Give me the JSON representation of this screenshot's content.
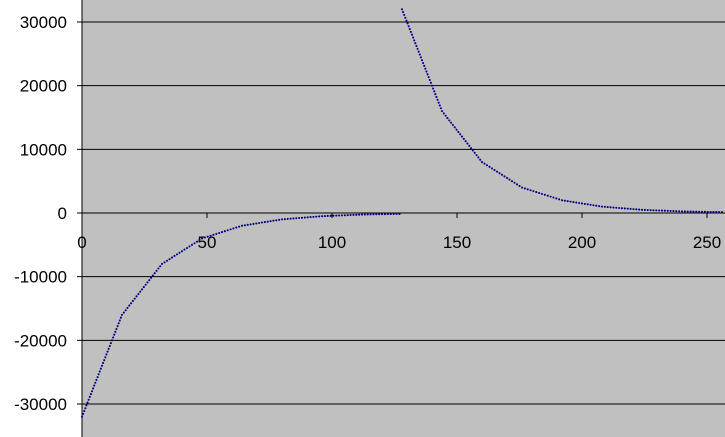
{
  "chart_data": {
    "type": "scatter",
    "title": "",
    "xlabel": "",
    "ylabel": "",
    "xlim": [
      0,
      257
    ],
    "ylim": [
      -35000,
      34000
    ],
    "grid": true,
    "legend": "none",
    "colors": {
      "plot_background": "#c0c0c0",
      "page_background": "#ffffff",
      "gridline": "#000000",
      "series": "#000080"
    },
    "x_ticks": [
      {
        "value": 0,
        "label": "0"
      },
      {
        "value": 50,
        "label": "50"
      },
      {
        "value": 100,
        "label": "100"
      },
      {
        "value": 150,
        "label": "150"
      },
      {
        "value": 200,
        "label": "200"
      },
      {
        "value": 250,
        "label": "250"
      }
    ],
    "y_ticks": [
      {
        "value": 30000,
        "label": "30000"
      },
      {
        "value": 20000,
        "label": "20000"
      },
      {
        "value": 10000,
        "label": "10000"
      },
      {
        "value": 0,
        "label": "0"
      },
      {
        "value": -10000,
        "label": "-10000"
      },
      {
        "value": -20000,
        "label": "-20000"
      },
      {
        "value": -30000,
        "label": "-30000"
      }
    ],
    "series": [
      {
        "x": [
          0,
          8,
          16,
          24,
          32,
          40,
          48,
          56,
          64,
          72,
          80,
          88,
          96,
          104,
          112,
          120,
          127,
          128,
          136,
          144,
          152,
          160,
          168,
          176,
          184,
          192,
          200,
          208,
          216,
          224,
          232,
          240,
          248,
          256
        ],
        "y": [
          -32000,
          -24000,
          -16000,
          -12000,
          -8000,
          -6000,
          -4000,
          -3000,
          -2000,
          -1500,
          -1000,
          -750,
          -500,
          -375,
          -250,
          -188,
          -150,
          32000,
          24000,
          16000,
          12000,
          8000,
          6000,
          4000,
          3000,
          2000,
          1500,
          1000,
          750,
          500,
          375,
          250,
          188,
          150
        ]
      }
    ]
  }
}
